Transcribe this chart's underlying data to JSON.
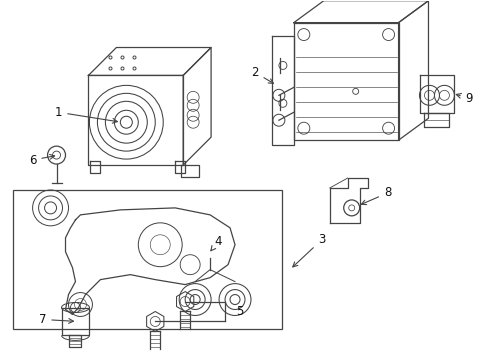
{
  "background_color": "#ffffff",
  "line_color": "#444444",
  "lw": 0.9,
  "fig_w": 4.89,
  "fig_h": 3.6,
  "dpi": 100
}
